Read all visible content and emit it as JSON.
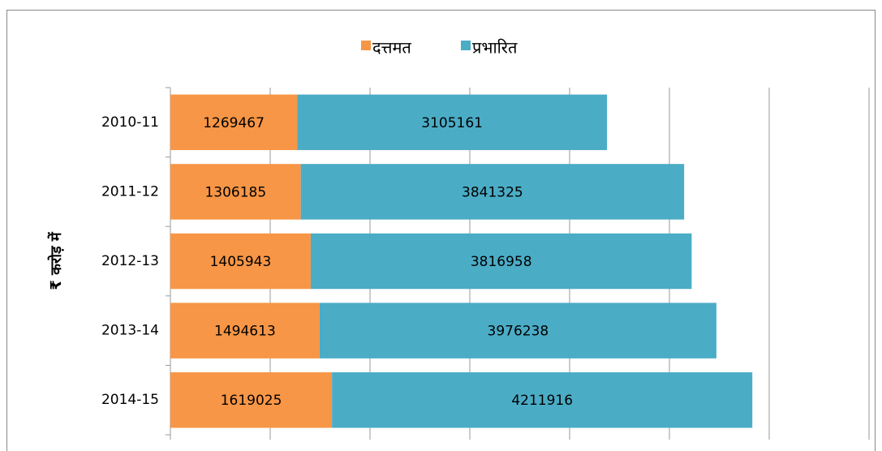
{
  "chart_data": {
    "type": "stacked-bar-horizontal",
    "y_axis_label": "₹ करोड़ में",
    "categories": [
      "2010-11",
      "2011-12",
      "2012-13",
      "2013-14",
      "2014-15"
    ],
    "series": [
      {
        "name": "दत्तमत",
        "color": "#f79646",
        "values": [
          1269467,
          1306185,
          1405943,
          1494613,
          1619025
        ]
      },
      {
        "name": "प्रभारित",
        "color": "#4bacc6",
        "values": [
          3105161,
          3841325,
          3816958,
          3976238,
          4211916
        ]
      }
    ],
    "xlim": [
      0,
      7000000
    ],
    "xticks": [
      0,
      1000000,
      2000000,
      3000000,
      4000000,
      5000000,
      6000000,
      7000000
    ],
    "grid": true,
    "legend": "top"
  }
}
